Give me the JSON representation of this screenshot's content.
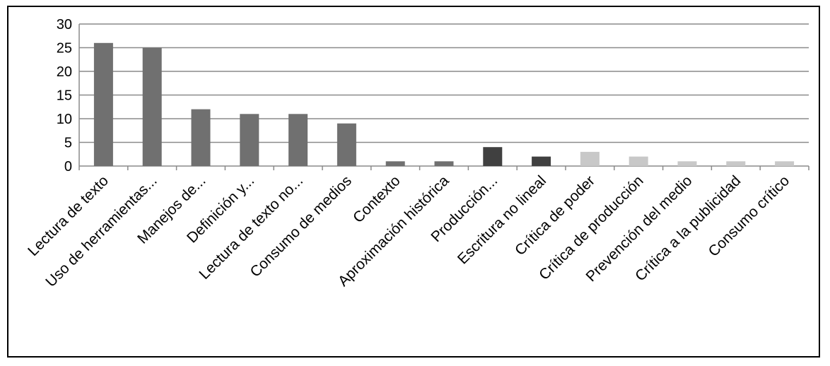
{
  "chart_data": {
    "type": "bar",
    "title": "",
    "xlabel": "",
    "ylabel": "",
    "ylim": [
      0,
      30
    ],
    "yticks": [
      0,
      5,
      10,
      15,
      20,
      25,
      30
    ],
    "grid": true,
    "categories": [
      "Lectura de texto",
      "Uso de herramientas...",
      "Manejos de...",
      "Definición y...",
      "Lectura de texto no...",
      "Consumo de medios",
      "Contexto",
      "Aproximación histórica",
      "Producción...",
      "Escritura no lineal",
      "Crítica de poder",
      "Crítica de producción",
      "Prevención del medio",
      "Crítica a la publicidad",
      "Consumo crítico"
    ],
    "values": [
      26,
      25,
      12,
      11,
      11,
      9,
      1,
      1,
      4,
      2,
      3,
      2,
      1,
      1,
      1
    ],
    "colors": [
      "#707070",
      "#707070",
      "#707070",
      "#707070",
      "#707070",
      "#707070",
      "#707070",
      "#707070",
      "#404040",
      "#404040",
      "#c8c8c8",
      "#c8c8c8",
      "#c8c8c8",
      "#c8c8c8",
      "#c8c8c8"
    ]
  }
}
